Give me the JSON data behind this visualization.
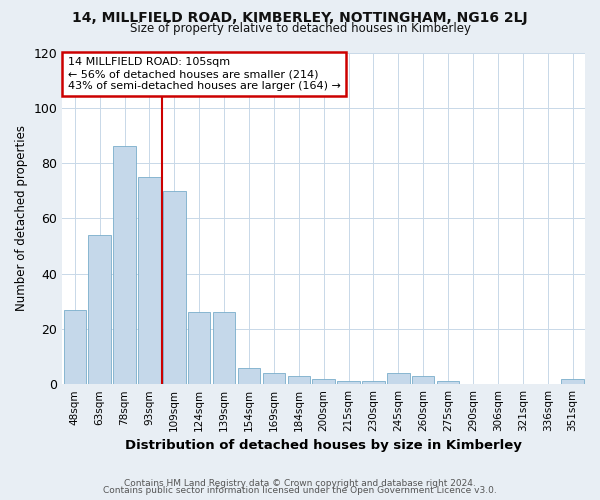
{
  "title": "14, MILLFIELD ROAD, KIMBERLEY, NOTTINGHAM, NG16 2LJ",
  "subtitle": "Size of property relative to detached houses in Kimberley",
  "xlabel": "Distribution of detached houses by size in Kimberley",
  "ylabel": "Number of detached properties",
  "bar_labels": [
    "48sqm",
    "63sqm",
    "78sqm",
    "93sqm",
    "109sqm",
    "124sqm",
    "139sqm",
    "154sqm",
    "169sqm",
    "184sqm",
    "200sqm",
    "215sqm",
    "230sqm",
    "245sqm",
    "260sqm",
    "275sqm",
    "290sqm",
    "306sqm",
    "321sqm",
    "336sqm",
    "351sqm"
  ],
  "bar_values": [
    27,
    54,
    86,
    75,
    70,
    26,
    26,
    6,
    4,
    3,
    2,
    1,
    1,
    4,
    3,
    1,
    0,
    0,
    0,
    0,
    2
  ],
  "bar_color": "#c5d8ea",
  "bar_edge_color": "#7aaecb",
  "vline_index": 4,
  "vline_color": "#cc0000",
  "annotation_title": "14 MILLFIELD ROAD: 105sqm",
  "annotation_line1": "← 56% of detached houses are smaller (214)",
  "annotation_line2": "43% of semi-detached houses are larger (164) →",
  "annotation_box_color": "#cc0000",
  "ylim": [
    0,
    120
  ],
  "yticks": [
    0,
    20,
    40,
    60,
    80,
    100,
    120
  ],
  "footer1": "Contains HM Land Registry data © Crown copyright and database right 2024.",
  "footer2": "Contains public sector information licensed under the Open Government Licence v3.0.",
  "fig_bg_color": "#e8eef4",
  "plot_bg_color": "#ffffff",
  "grid_color": "#c8d8e8"
}
